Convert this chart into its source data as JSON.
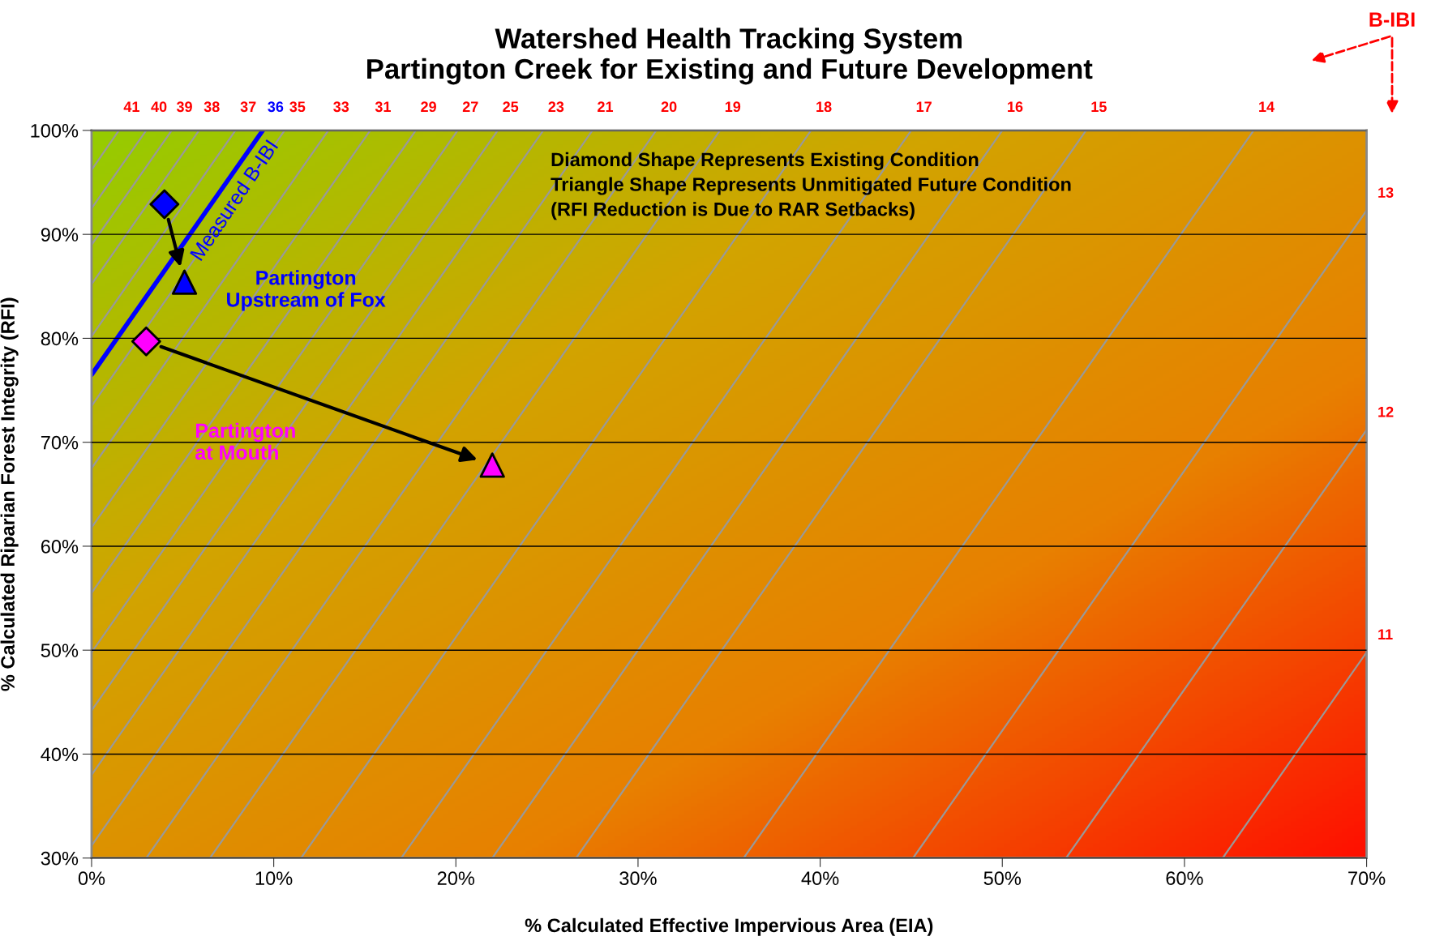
{
  "chart_data": {
    "type": "line",
    "title": "Watershed Health Tracking System\nPartington Creek for Existing and Future Development",
    "xlabel": "% Calculated Effective Impervious Area (EIA)",
    "ylabel": "% Calculated Riparian Forest Integrity (RFI)",
    "xlim": [
      0,
      70
    ],
    "ylim": [
      30,
      100
    ],
    "xticks": [
      {
        "value": 0,
        "label": "0%"
      },
      {
        "value": 10,
        "label": "10%"
      },
      {
        "value": 20,
        "label": "20%"
      },
      {
        "value": 30,
        "label": "30%"
      },
      {
        "value": 40,
        "label": "40%"
      },
      {
        "value": 50,
        "label": "50%"
      },
      {
        "value": 60,
        "label": "60%"
      },
      {
        "value": 70,
        "label": "70%"
      }
    ],
    "yticks": [
      {
        "value": 30,
        "label": "30%"
      },
      {
        "value": 40,
        "label": "40%"
      },
      {
        "value": 50,
        "label": "50%"
      },
      {
        "value": 60,
        "label": "60%"
      },
      {
        "value": 70,
        "label": "70%"
      },
      {
        "value": 80,
        "label": "80%"
      },
      {
        "value": 90,
        "label": "90%"
      },
      {
        "value": 100,
        "label": "100%"
      }
    ],
    "grid": "y",
    "line_style": "solid",
    "series": [
      {
        "name": "41",
        "color": "#999999",
        "x": [
          0,
          1.5
        ],
        "values": [
          96.2,
          100
        ]
      },
      {
        "name": "40",
        "color": "#999999",
        "x": [
          0,
          3.0
        ],
        "values": [
          92.5,
          100
        ]
      },
      {
        "name": "39",
        "color": "#999999",
        "x": [
          0,
          4.4
        ],
        "values": [
          89.0,
          100
        ]
      },
      {
        "name": "38",
        "color": "#999999",
        "x": [
          0,
          5.9
        ],
        "values": [
          85.2,
          100
        ]
      },
      {
        "name": "37",
        "color": "#999999",
        "x": [
          0,
          7.9
        ],
        "values": [
          80.2,
          100
        ]
      },
      {
        "name": "36",
        "color": "#0000ff",
        "x": [
          0,
          9.4
        ],
        "values": [
          76.5,
          100
        ]
      },
      {
        "name": "35",
        "color": "#999999",
        "x": [
          0,
          10.6
        ],
        "values": [
          73.5,
          100
        ]
      },
      {
        "name": "33",
        "color": "#999999",
        "x": [
          0,
          13.0
        ],
        "values": [
          67.5,
          100
        ]
      },
      {
        "name": "31",
        "color": "#999999",
        "x": [
          0,
          15.3
        ],
        "values": [
          61.8,
          100
        ]
      },
      {
        "name": "29",
        "color": "#999999",
        "x": [
          0,
          17.8
        ],
        "values": [
          55.5,
          100
        ]
      },
      {
        "name": "27",
        "color": "#999999",
        "x": [
          0,
          20.1
        ],
        "values": [
          49.8,
          100
        ]
      },
      {
        "name": "25",
        "color": "#999999",
        "x": [
          0,
          22.3
        ],
        "values": [
          44.2,
          100
        ]
      },
      {
        "name": "23",
        "color": "#999999",
        "x": [
          0,
          24.8
        ],
        "values": [
          38.0,
          100
        ]
      },
      {
        "name": "21",
        "color": "#999999",
        "x": [
          0,
          27.5
        ],
        "values": [
          31.2,
          100
        ]
      },
      {
        "name": "20",
        "color": "#999999",
        "x": [
          3.0,
          31.0
        ],
        "values": [
          30,
          100
        ]
      },
      {
        "name": "19",
        "color": "#999999",
        "x": [
          6.5,
          34.5
        ],
        "values": [
          30,
          100
        ]
      },
      {
        "name": "18",
        "color": "#999999",
        "x": [
          11.5,
          39.5
        ],
        "values": [
          30,
          100
        ]
      },
      {
        "name": "17",
        "color": "#999999",
        "x": [
          17.0,
          45.0
        ],
        "values": [
          30,
          100
        ]
      },
      {
        "name": "16",
        "color": "#999999",
        "x": [
          22.0,
          50.0
        ],
        "values": [
          30,
          100
        ]
      },
      {
        "name": "15",
        "color": "#999999",
        "x": [
          26.6,
          54.6
        ],
        "values": [
          30,
          100
        ]
      },
      {
        "name": "14",
        "color": "#999999",
        "x": [
          35.8,
          63.8
        ],
        "values": [
          30,
          100
        ]
      },
      {
        "name": "13",
        "color": "#999999",
        "x": [
          45.1,
          70
        ],
        "values": [
          30,
          92.3
        ]
      },
      {
        "name": "12",
        "color": "#999999",
        "x": [
          53.5,
          70
        ],
        "values": [
          30,
          71.2
        ]
      },
      {
        "name": "11",
        "color": "#999999",
        "x": [
          62.1,
          70
        ],
        "values": [
          30,
          49.8
        ]
      },
      {
        "type": "scatter",
        "color": "#0000ff",
        "marker": [
          "diamond",
          "triangle"
        ],
        "x": [
          4.0,
          5.1
        ],
        "values": [
          92.9,
          85.4
        ]
      },
      {
        "type": "scatter",
        "color": "#ff00ff",
        "marker": [
          "diamond",
          "triangle"
        ],
        "x": [
          3.0,
          22.0
        ],
        "values": [
          79.7,
          67.8
        ]
      }
    ],
    "annotations": [
      "Diamond Shape Represents Existing Condition\nTriangle Shape Represents Unmitigated Future Condition\n(RFI Reduction is Due to RAR Setbacks)",
      "Partington\nUpstream of Fox",
      "Partington\nat Mouth",
      {
        "text": "Measured B-IBI",
        "x": 7.9,
        "y": 93.2
      },
      "B-IBI"
    ]
  }
}
